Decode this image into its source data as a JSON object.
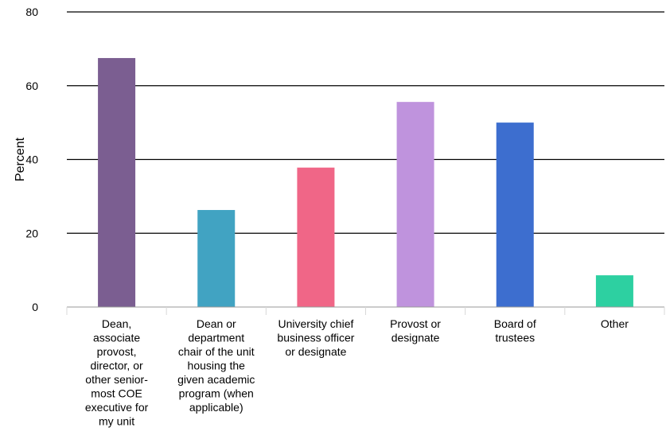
{
  "chart_data": {
    "type": "bar",
    "title": "",
    "xlabel": "",
    "ylabel": "Percent",
    "ylim": [
      0,
      80
    ],
    "yticks": [
      0,
      20,
      40,
      60,
      80
    ],
    "grid": true,
    "legend": "none",
    "categories": [
      "Dean, associate provost, director, or other senior-most COE executive for my unit",
      "Dean or department chair of the unit housing the given academic program (when applicable)",
      "University chief business officer or designate",
      "Provost or designate",
      "Board of trustees",
      "Other"
    ],
    "category_label_lines": [
      [
        "Dean,",
        "associate",
        "provost,",
        "director, or",
        "other senior-",
        "most COE",
        "executive for",
        "my unit"
      ],
      [
        "Dean or",
        "department",
        "chair of the unit",
        "housing the",
        "given academic",
        "program (when",
        "applicable)"
      ],
      [
        "University chief",
        "business officer",
        "or designate"
      ],
      [
        "Provost or",
        "designate"
      ],
      [
        "Board of",
        "trustees"
      ],
      [
        "Other"
      ]
    ],
    "values": [
      67.5,
      26.3,
      37.8,
      55.6,
      50.0,
      8.6
    ],
    "colors": [
      "#7b5e91",
      "#41a3c2",
      "#f06687",
      "#bf93dd",
      "#3d6ecf",
      "#2dd0a1"
    ]
  }
}
